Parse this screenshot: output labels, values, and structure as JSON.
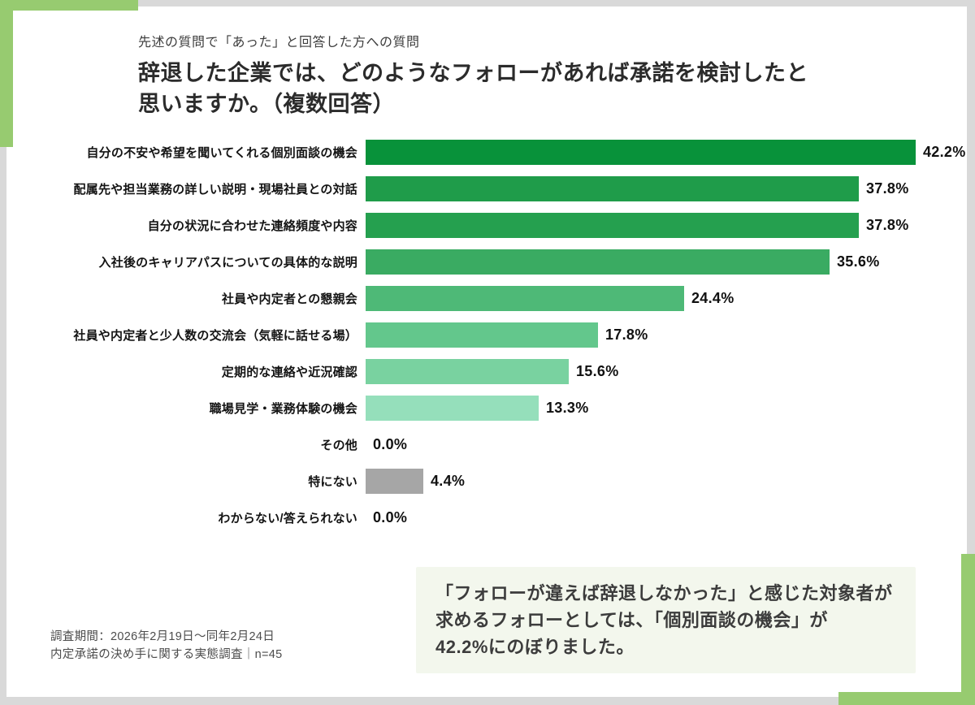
{
  "frame": {
    "border_color": "#d9d9d9",
    "card_bg": "#ffffff",
    "accent_green": "#97cb70"
  },
  "header": {
    "subtitle": "先述の質問で「あった」と回答した方への質問",
    "title_line1": "辞退した企業では、どのようなフォローがあれば承諾を検討したと",
    "title_line2": "思いますか。（複数回答）"
  },
  "chart_data": {
    "type": "bar",
    "orientation": "horizontal",
    "unit": "%",
    "grid": false,
    "legend": "none",
    "xlim": [
      0,
      45
    ],
    "categories": [
      "自分の不安や希望を聞いてくれる個別面談の機会",
      "配属先や担当業務の詳しい説明・現場社員との対話",
      "自分の状況に合わせた連絡頻度や内容",
      "入社後のキャリアパスについての具体的な説明",
      "社員や内定者との懇親会",
      "社員や内定者と少人数の交流会（気軽に話せる場）",
      "定期的な連絡や近況確認",
      "職場見学・業務体験の機会",
      "その他",
      "特にない",
      "わからない/答えられない"
    ],
    "values": [
      42.2,
      37.8,
      37.8,
      35.6,
      24.4,
      17.8,
      15.6,
      13.3,
      0.0,
      4.4,
      0.0
    ],
    "value_labels": [
      "42.2%",
      "37.8%",
      "37.8%",
      "35.6%",
      "24.4%",
      "17.8%",
      "15.6%",
      "13.3%",
      "0.0%",
      "4.4%",
      "0.0%"
    ],
    "bar_colors": [
      "#08923a",
      "#1f9c4a",
      "#25a04f",
      "#3aab62",
      "#4eb977",
      "#63c78c",
      "#79d2a0",
      "#95dfbb",
      "",
      "#a6a6a6",
      ""
    ]
  },
  "annotation": {
    "bg": "#f3f7ed",
    "line1": "「フォローが違えば辞退しなかった」と感じた対象者が",
    "line2": "求めるフォローとしては、「個別面談の機会」が",
    "line3": "42.2%にのぼりました。"
  },
  "footer": {
    "line1": "調査期間：2026年2月19日〜同年2月24日",
    "line2": "内定承諾の決め手に関する実態調査｜n=45"
  }
}
